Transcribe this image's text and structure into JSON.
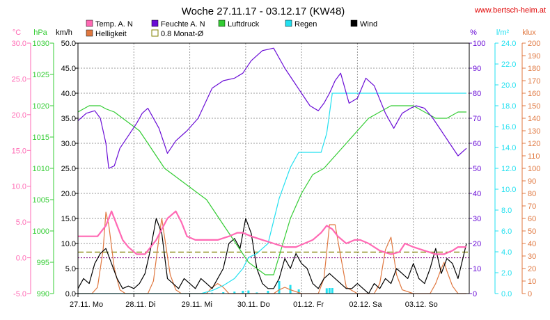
{
  "header": {
    "title": "Woche 27.11.17 - 03.12.17 (KW48)",
    "source": "www.bertsch-heim.at"
  },
  "legend": [
    {
      "label": "Temp. A. N",
      "color": "#ff69b4",
      "style": "box"
    },
    {
      "label": "Feuchte A. N",
      "color": "#6a0dd6",
      "style": "box"
    },
    {
      "label": "Luftdruck",
      "color": "#33cc33",
      "style": "box"
    },
    {
      "label": "Regen",
      "color": "#22e0f0",
      "style": "box"
    },
    {
      "label": "Wind",
      "color": "#000000",
      "style": "box"
    },
    {
      "label": "Helligkeit",
      "color": "#e07840",
      "style": "box"
    },
    {
      "label": "0.8 Monat-Ø",
      "color": "#808000",
      "style": "outline"
    }
  ],
  "axes": {
    "temp": {
      "unit": "°C",
      "color": "#ff69b4",
      "ticks": [
        "30.0",
        "25.0",
        "20.0",
        "15.0",
        "10.0",
        "5.0",
        "0.0",
        "-5.0"
      ]
    },
    "press": {
      "unit": "hPa",
      "color": "#33cc33",
      "ticks": [
        "1030",
        "1025",
        "1020",
        "1015",
        "1010",
        "1005",
        "1000",
        "995",
        "990"
      ]
    },
    "wind": {
      "unit": "km/h",
      "color": "#000000",
      "ticks": [
        "50.0",
        "45.0",
        "40.0",
        "35.0",
        "30.0",
        "25.0",
        "20.0",
        "15.0",
        "10.0",
        "5.0",
        "0.0"
      ]
    },
    "hum": {
      "unit": "%",
      "color": "#6a0dd6",
      "ticks": [
        "100",
        "90",
        "80",
        "70",
        "60",
        "50",
        "40",
        "30",
        "20",
        "10",
        "0"
      ]
    },
    "rain": {
      "unit": "l/m²",
      "color": "#22e0f0",
      "ticks": [
        "24.0",
        "22.0",
        "20.0",
        "18.0",
        "16.0",
        "14.0",
        "12.0",
        "10.0",
        "8.0",
        "6.0",
        "4.0",
        "2.0",
        "0.0"
      ]
    },
    "lux": {
      "unit": "klux",
      "color": "#e07840",
      "ticks": [
        "200",
        "190",
        "180",
        "170",
        "160",
        "150",
        "140",
        "130",
        "120",
        "110",
        "100",
        "90",
        "80",
        "70",
        "60",
        "50",
        "40",
        "30",
        "20",
        "10",
        "0"
      ]
    }
  },
  "days": [
    "27.11.  Mo",
    "28.11.  Di",
    "29.11.  Mi",
    "30.11.  Do",
    "01.12.  Fr",
    "02.12.  Sa",
    "03.12.  So"
  ],
  "chart_data": {
    "type": "line",
    "x_unit": "days since Mon 27.11.17 00:00",
    "xlim": [
      0,
      7
    ],
    "series": [
      {
        "name": "Temp. A. N",
        "axis": "temp",
        "ylim": [
          -5,
          30
        ],
        "color": "#ff69b4",
        "x": [
          0,
          0.35,
          0.5,
          0.6,
          0.7,
          0.8,
          0.9,
          1.05,
          1.2,
          1.4,
          1.6,
          1.75,
          1.85,
          1.95,
          2.1,
          2.3,
          2.5,
          2.7,
          2.85,
          2.95,
          3.1,
          3.3,
          3.5,
          3.7,
          3.9,
          4.05,
          4.2,
          4.35,
          4.45,
          4.55,
          4.65,
          4.8,
          4.95,
          5.05,
          5.2,
          5.4,
          5.6,
          5.75,
          5.85,
          6.0,
          6.2,
          6.4,
          6.55,
          6.7,
          6.8,
          6.95
        ],
        "y": [
          3,
          3,
          4.5,
          6.5,
          4.5,
          2.5,
          1.5,
          0.5,
          0.5,
          2.5,
          5.5,
          6.5,
          5,
          3,
          2.5,
          2.5,
          2.5,
          3,
          3.5,
          3.5,
          3,
          2.5,
          2,
          1.5,
          1.5,
          2,
          2.5,
          3.5,
          4.5,
          4,
          3,
          2,
          2.5,
          2.5,
          2,
          1,
          0.5,
          0.8,
          2,
          1.5,
          1,
          0.5,
          0.5,
          1,
          1.5,
          1.5
        ]
      },
      {
        "name": "Feuchte A. N",
        "axis": "hum",
        "ylim": [
          0,
          100
        ],
        "color": "#6a0dd6",
        "x": [
          0,
          0.15,
          0.3,
          0.4,
          0.5,
          0.55,
          0.65,
          0.75,
          0.9,
          1.05,
          1.15,
          1.25,
          1.3,
          1.45,
          1.6,
          1.75,
          1.95,
          2.15,
          2.4,
          2.6,
          2.8,
          2.95,
          3.1,
          3.3,
          3.5,
          3.7,
          3.85,
          4.0,
          4.15,
          4.3,
          4.4,
          4.5,
          4.6,
          4.7,
          4.85,
          5.0,
          5.15,
          5.3,
          5.5,
          5.65,
          5.8,
          5.95,
          6.05,
          6.2,
          6.35,
          6.5,
          6.65,
          6.8,
          6.95
        ],
        "y": [
          69,
          72,
          73,
          70,
          60,
          50,
          51,
          58,
          63,
          68,
          72,
          74,
          72,
          66,
          56,
          61,
          65,
          70,
          82,
          85,
          86,
          88,
          93,
          97,
          98,
          90,
          85,
          80,
          75,
          73,
          76,
          80,
          85,
          88,
          76,
          78,
          86,
          83,
          72,
          66,
          72,
          74,
          75,
          74,
          70,
          65,
          60,
          55,
          58
        ]
      },
      {
        "name": "Luftdruck",
        "axis": "press",
        "ylim": [
          990,
          1030
        ],
        "color": "#33cc33",
        "x": [
          0,
          0.1,
          0.2,
          0.3,
          0.4,
          0.5,
          0.65,
          0.8,
          0.95,
          1.1,
          1.25,
          1.4,
          1.55,
          1.7,
          1.85,
          2.0,
          2.15,
          2.3,
          2.45,
          2.6,
          2.75,
          2.9,
          3.05,
          3.2,
          3.35,
          3.5,
          3.6,
          3.8,
          4.0,
          4.2,
          4.4,
          4.6,
          4.8,
          5.0,
          5.2,
          5.4,
          5.6,
          5.8,
          6.0,
          6.2,
          6.4,
          6.6,
          6.8,
          6.95
        ],
        "y": [
          1019,
          1019.5,
          1020,
          1020,
          1020,
          1019.5,
          1019,
          1018,
          1017,
          1016,
          1014,
          1012,
          1010,
          1009,
          1008,
          1007,
          1006,
          1005,
          1003,
          1001,
          999,
          997,
          995,
          994,
          993,
          993,
          996,
          1002,
          1006,
          1009,
          1010,
          1012,
          1014,
          1016,
          1018,
          1019,
          1020,
          1020,
          1020,
          1019,
          1018,
          1018,
          1019,
          1019
        ]
      },
      {
        "name": "Regen",
        "axis": "rain",
        "ylim": [
          0,
          25
        ],
        "color": "#22e0f0",
        "x": [
          0,
          2.2,
          2.4,
          2.6,
          2.8,
          2.95,
          3.05,
          3.2,
          3.4,
          3.6,
          3.8,
          3.95,
          4.05,
          4.2,
          4.35,
          4.45,
          4.5,
          4.55,
          5.0,
          6.95
        ],
        "y": [
          0,
          0,
          0.3,
          0.8,
          1.5,
          2.5,
          3.6,
          4,
          5,
          9.5,
          12.6,
          14.1,
          14.1,
          14.1,
          14.1,
          16,
          18,
          20,
          20,
          20
        ]
      },
      {
        "name": "Wind",
        "axis": "wind",
        "ylim": [
          0,
          50
        ],
        "color": "#000000",
        "x": [
          0,
          0.1,
          0.2,
          0.3,
          0.4,
          0.5,
          0.6,
          0.7,
          0.8,
          0.9,
          1.0,
          1.1,
          1.2,
          1.3,
          1.4,
          1.5,
          1.6,
          1.7,
          1.8,
          1.9,
          2.0,
          2.1,
          2.2,
          2.3,
          2.4,
          2.5,
          2.6,
          2.7,
          2.8,
          2.9,
          3.0,
          3.1,
          3.2,
          3.3,
          3.4,
          3.5,
          3.6,
          3.7,
          3.8,
          3.9,
          4.0,
          4.1,
          4.2,
          4.3,
          4.4,
          4.5,
          4.6,
          4.7,
          4.8,
          4.9,
          5.0,
          5.1,
          5.2,
          5.3,
          5.4,
          5.5,
          5.6,
          5.7,
          5.8,
          5.9,
          6.0,
          6.1,
          6.2,
          6.3,
          6.4,
          6.5,
          6.6,
          6.7,
          6.8,
          6.95
        ],
        "y": [
          1,
          3,
          2,
          6,
          8,
          9,
          6,
          3,
          1,
          1.5,
          1,
          2,
          4,
          9,
          15,
          12,
          3,
          2,
          1,
          3,
          2,
          1,
          3,
          2,
          1,
          3,
          5,
          10,
          11,
          9,
          15,
          12,
          5,
          2,
          1,
          1,
          3,
          7,
          5,
          8,
          6,
          5,
          2,
          1,
          3,
          4,
          3,
          2,
          1,
          1,
          2,
          1,
          0,
          2,
          1,
          3,
          2,
          5,
          4,
          3,
          6,
          3,
          2,
          5,
          9,
          4,
          7,
          6,
          3,
          10
        ]
      },
      {
        "name": "Helligkeit",
        "axis": "lux",
        "ylim": [
          0,
          200
        ],
        "color": "#e07840",
        "x": [
          0,
          0.25,
          0.35,
          0.45,
          0.5,
          0.55,
          0.65,
          0.75,
          0.85,
          1.0,
          1.25,
          1.35,
          1.45,
          1.5,
          1.55,
          1.65,
          1.75,
          1.85,
          2.0,
          2.3,
          2.4,
          2.5,
          2.6,
          2.7,
          3.0,
          3.3,
          3.5,
          3.6,
          3.7,
          3.8,
          4.0,
          4.3,
          4.4,
          4.5,
          4.6,
          4.7,
          4.8,
          5.0,
          5.3,
          5.4,
          5.5,
          5.6,
          5.7,
          5.8,
          6.0,
          6.3,
          6.4,
          6.5,
          6.55,
          6.6,
          6.7,
          6.8,
          6.95
        ],
        "y": [
          0,
          0,
          5,
          35,
          65,
          55,
          20,
          3,
          0,
          0,
          0,
          10,
          45,
          60,
          45,
          15,
          3,
          0,
          0,
          0,
          5,
          8,
          5,
          0,
          0,
          0,
          0,
          3,
          5,
          3,
          0,
          0,
          12,
          55,
          55,
          30,
          5,
          0,
          0,
          8,
          35,
          45,
          15,
          3,
          0,
          0,
          8,
          20,
          25,
          18,
          6,
          0,
          0
        ]
      }
    ],
    "reference_lines": [
      {
        "name": "0.8 Monat-Ø",
        "axis": "temp",
        "value": 0.8,
        "color": "#808000",
        "style": "dashed"
      },
      {
        "axis": "temp",
        "value": 0,
        "color": "#800080",
        "style": "dotted"
      }
    ],
    "grid": true
  }
}
